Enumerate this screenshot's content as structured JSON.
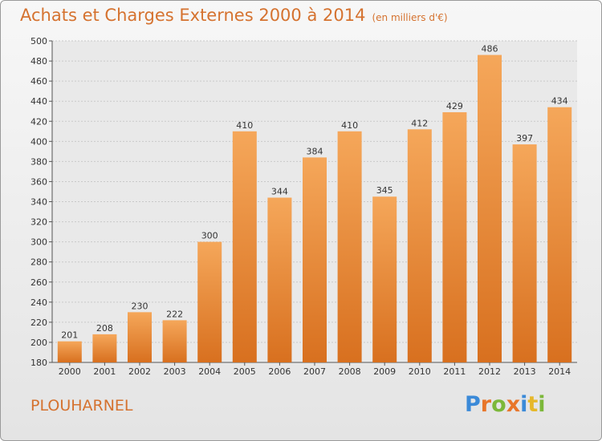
{
  "chart_data": {
    "type": "bar",
    "title": "Achats et Charges Externes 2000 à 2014",
    "subtitle": "(en milliers d'€)",
    "categories": [
      "2000",
      "2001",
      "2002",
      "2003",
      "2004",
      "2005",
      "2006",
      "2007",
      "2008",
      "2009",
      "2010",
      "2011",
      "2012",
      "2013",
      "2014"
    ],
    "values": [
      201,
      208,
      230,
      222,
      300,
      410,
      344,
      384,
      410,
      345,
      412,
      429,
      486,
      397,
      434
    ],
    "ylim": [
      180,
      500
    ],
    "yticks": [
      180,
      200,
      220,
      240,
      260,
      280,
      300,
      320,
      340,
      360,
      380,
      400,
      420,
      440,
      460,
      480,
      500
    ],
    "grid": true,
    "colors": {
      "bar_light": "#f5a75a",
      "bar_dark": "#d8701f",
      "title": "#d5722f"
    }
  },
  "place_name": "PLOUHARNEL",
  "logo": {
    "letters": [
      "P",
      "r",
      "o",
      "x",
      "i",
      "t",
      "i"
    ],
    "colors": [
      "#3b8ad8",
      "#e8762a",
      "#7cb83a",
      "#e8762a",
      "#3b8ad8",
      "#e6b82a",
      "#7cb83a"
    ]
  }
}
